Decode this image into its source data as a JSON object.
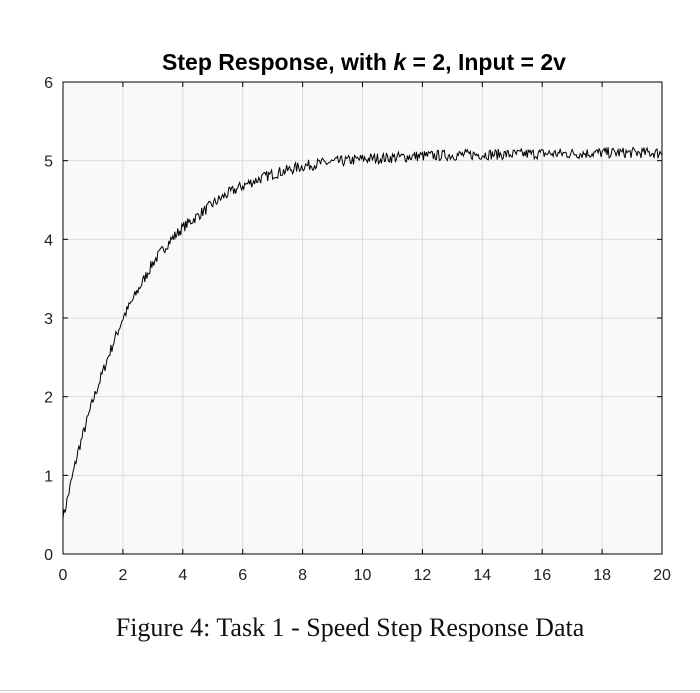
{
  "chart_data": {
    "type": "line",
    "title_parts": [
      "Step Response, with ",
      "k",
      " = 2, Input = 2v"
    ],
    "xlabel": "",
    "ylabel": "",
    "xlim": [
      0,
      20
    ],
    "ylim": [
      0,
      6
    ],
    "xticks": [
      "0",
      "2",
      "4",
      "6",
      "8",
      "10",
      "12",
      "14",
      "16",
      "18",
      "20"
    ],
    "yticks": [
      "0",
      "1",
      "2",
      "3",
      "4",
      "5",
      "6"
    ],
    "grid": true,
    "series": [
      {
        "color": "#000000",
        "x": [
          0,
          0.5,
          1,
          1.5,
          2,
          2.5,
          3,
          3.5,
          4,
          4.5,
          5,
          5.5,
          6,
          6.5,
          7,
          7.5,
          8,
          8.5,
          9,
          9.5,
          10,
          11,
          12,
          13,
          14,
          15,
          16,
          17,
          18,
          19,
          20
        ],
        "y": [
          0.45,
          1.3,
          1.95,
          2.5,
          3.0,
          3.35,
          3.7,
          3.95,
          4.15,
          4.3,
          4.45,
          4.58,
          4.68,
          4.76,
          4.83,
          4.88,
          4.93,
          4.96,
          4.98,
          5.0,
          5.02,
          5.04,
          5.06,
          5.07,
          5.08,
          5.08,
          5.09,
          5.09,
          5.1,
          5.1,
          5.1
        ]
      }
    ],
    "noise_amplitude": 0.07
  },
  "caption": "Figure 4:  Task 1 - Speed Step Response Data"
}
